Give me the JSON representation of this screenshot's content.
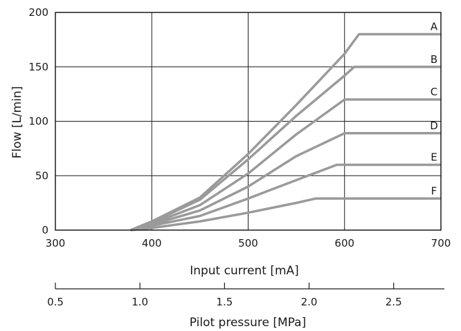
{
  "chart_data": {
    "type": "line",
    "xlabel": "Input current [mA]",
    "ylabel": "Flow [L/min]",
    "secondary_xlabel": "Pilot pressure [MPa]",
    "xlim": [
      300,
      700
    ],
    "ylim": [
      0,
      200
    ],
    "x_ticks": [
      300,
      400,
      500,
      600,
      700
    ],
    "y_ticks": [
      0,
      50,
      100,
      150,
      200
    ],
    "secondary_xlim": [
      0.5,
      2.8
    ],
    "secondary_x_ticks": [
      "0.5",
      "1.0",
      "1.5",
      "2.0",
      "2.5"
    ],
    "grid": true,
    "line_color": "#9a9a9a",
    "series": [
      {
        "name": "A",
        "x": [
          378,
          400,
          450,
          500,
          550,
          600,
          615,
          700
        ],
        "y": [
          0,
          8,
          30,
          70,
          115,
          162,
          180,
          180
        ]
      },
      {
        "name": "B",
        "x": [
          378,
          400,
          450,
          500,
          550,
          600,
          610,
          700
        ],
        "y": [
          0,
          7,
          28,
          65,
          105,
          142,
          150,
          150
        ]
      },
      {
        "name": "C",
        "x": [
          378,
          400,
          450,
          500,
          550,
          600,
          700
        ],
        "y": [
          0,
          6,
          23,
          52,
          88,
          120,
          120
        ]
      },
      {
        "name": "D",
        "x": [
          378,
          400,
          450,
          500,
          550,
          600,
          700
        ],
        "y": [
          0,
          5,
          18,
          40,
          68,
          89,
          89
        ]
      },
      {
        "name": "E",
        "x": [
          378,
          400,
          450,
          500,
          550,
          592,
          700
        ],
        "y": [
          0,
          4,
          13,
          29,
          46,
          60,
          60
        ]
      },
      {
        "name": "F",
        "x": [
          378,
          400,
          450,
          500,
          550,
          570,
          700
        ],
        "y": [
          0,
          2,
          8,
          16,
          25,
          29,
          29
        ]
      }
    ]
  }
}
